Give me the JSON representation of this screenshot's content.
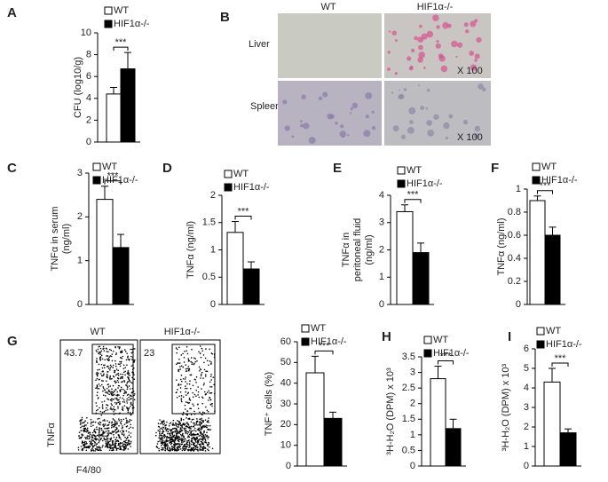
{
  "chart_data": [
    {
      "type": "bar",
      "panel": "A",
      "ylabel": [
        "CFU (log10/g)"
      ],
      "annotation": "***",
      "ylim": [
        0,
        10
      ],
      "yticks": [
        0,
        2,
        4,
        6,
        8,
        10
      ],
      "series": [
        {
          "name": "WT",
          "color": "#ffffff",
          "values": [
            4.4
          ],
          "errors": [
            0.6
          ]
        },
        {
          "name": "HIF1α-/-",
          "color": "#000000",
          "values": [
            6.7
          ],
          "errors": [
            1.5
          ]
        }
      ]
    },
    {
      "type": "bar",
      "panel": "C",
      "ylabel": [
        "TNFα in serum",
        "(ng/ml)"
      ],
      "annotation": "***",
      "ylim": [
        0,
        3
      ],
      "yticks": [
        0,
        1,
        2,
        3
      ],
      "series": [
        {
          "name": "WT",
          "color": "#ffffff",
          "values": [
            2.4
          ],
          "errors": [
            0.3
          ]
        },
        {
          "name": "HIF1α-/-",
          "color": "#000000",
          "values": [
            1.3
          ],
          "errors": [
            0.3
          ]
        }
      ]
    },
    {
      "type": "bar",
      "panel": "D",
      "ylabel": [
        "TNFα (ng/ml)"
      ],
      "annotation": "***",
      "ylim": [
        0,
        2
      ],
      "yticks": [
        0,
        0.5,
        1,
        1.5,
        2
      ],
      "series": [
        {
          "name": "WT",
          "color": "#ffffff",
          "values": [
            1.32
          ],
          "errors": [
            0.2
          ]
        },
        {
          "name": "HIF1α-/-",
          "color": "#000000",
          "values": [
            0.65
          ],
          "errors": [
            0.13
          ]
        }
      ]
    },
    {
      "type": "bar",
      "panel": "E",
      "ylabel": [
        "TNFα in",
        "peritoneal fluid",
        "(ng/ml)"
      ],
      "annotation": "***",
      "ylim": [
        0,
        4
      ],
      "yticks": [
        0,
        1,
        2,
        3,
        4
      ],
      "series": [
        {
          "name": "WT",
          "color": "#ffffff",
          "values": [
            3.4
          ],
          "errors": [
            0.25
          ]
        },
        {
          "name": "HIF1α-/-",
          "color": "#000000",
          "values": [
            1.9
          ],
          "errors": [
            0.35
          ]
        }
      ]
    },
    {
      "type": "bar",
      "panel": "F",
      "ylabel": [
        "TNFα (ng/ml)"
      ],
      "annotation": "***",
      "ylim": [
        0,
        1
      ],
      "yticks": [
        0,
        0.2,
        0.4,
        0.6,
        0.8,
        1
      ],
      "series": [
        {
          "name": "WT",
          "color": "#ffffff",
          "values": [
            0.9
          ],
          "errors": [
            0.04
          ]
        },
        {
          "name": "HIF1α-/-",
          "color": "#000000",
          "values": [
            0.6
          ],
          "errors": [
            0.07
          ]
        }
      ]
    },
    {
      "type": "bar",
      "ylabel": [
        "TNF⁺ cells (%)"
      ],
      "annotation": "***",
      "ylim": [
        0,
        60
      ],
      "yticks": [
        0,
        10,
        20,
        30,
        40,
        50,
        60
      ],
      "series": [
        {
          "name": "WT",
          "color": "#ffffff",
          "values": [
            45
          ],
          "errors": [
            8
          ]
        },
        {
          "name": "HIF1α-/-",
          "color": "#000000",
          "values": [
            23
          ],
          "errors": [
            3
          ]
        }
      ]
    },
    {
      "type": "bar",
      "panel": "H",
      "ylabel": [
        "³H-H₂O (DPM) x 10³"
      ],
      "annotation": "***",
      "ylim": [
        0,
        3.5
      ],
      "yticks": [
        0,
        0.5,
        1,
        1.5,
        2,
        2.5,
        3,
        3.5
      ],
      "series": [
        {
          "name": "WT",
          "color": "#ffffff",
          "values": [
            2.8
          ],
          "errors": [
            0.4
          ]
        },
        {
          "name": "HIF1α-/-",
          "color": "#000000",
          "values": [
            1.2
          ],
          "errors": [
            0.3
          ]
        }
      ]
    },
    {
      "type": "bar",
      "panel": "I",
      "ylabel": [
        "³H-H₂O (DPM) x 10³"
      ],
      "annotation": "***",
      "ylim": [
        0,
        6
      ],
      "yticks": [
        0,
        1,
        2,
        3,
        4,
        5,
        6
      ],
      "series": [
        {
          "name": "WT",
          "color": "#ffffff",
          "values": [
            4.3
          ],
          "errors": [
            0.7
          ]
        },
        {
          "name": "HIF1α-/-",
          "color": "#000000",
          "values": [
            1.7
          ],
          "errors": [
            0.2
          ]
        }
      ]
    }
  ],
  "panel_b": {
    "panel": "B",
    "columns": [
      "WT",
      "HIF1α-/-"
    ],
    "rows": [
      "Liver",
      "Spleen"
    ],
    "magnification": [
      "X 100",
      "X 100"
    ]
  },
  "panel_g": {
    "panel": "G",
    "columns": [
      "WT",
      "HIF1α-/-"
    ],
    "gate_values": [
      "43.7",
      "23"
    ],
    "y_axis": "TNFα",
    "x_axis": "F4/80"
  }
}
